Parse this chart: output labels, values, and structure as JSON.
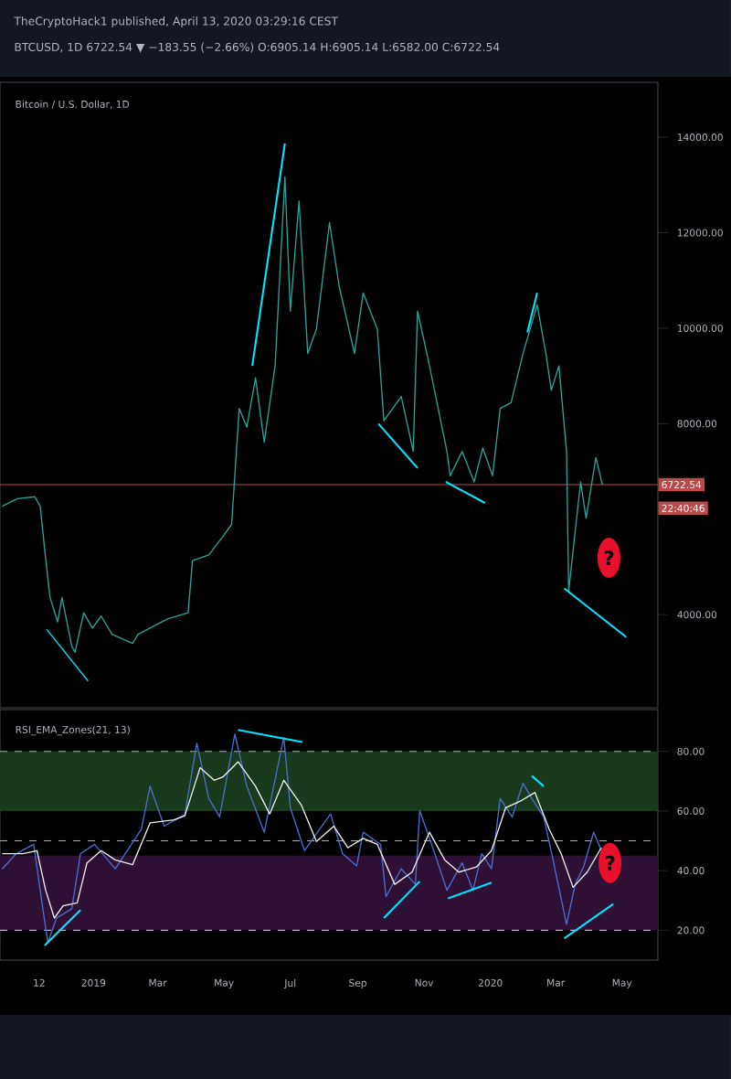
{
  "chart_data": [
    {
      "type": "line",
      "title": "TheCryptoHack1 published, April 13, 2020 03:29:16 CEST",
      "subtitle": "BTCUSD, 1D 6722.54 ▼ −183.55 (−2.66%) O:6905.14 H:6905.14 L:6582.00 C:6722.54",
      "xlim": [
        "2018-10-07",
        "2020-06-03"
      ],
      "ylim": [
        2050,
        15150
      ],
      "yticks": [
        {
          "value": 4000,
          "label": "4000.00"
        },
        {
          "value": 8000,
          "label": "8000.00"
        },
        {
          "value": 10000,
          "label": "10000.00"
        },
        {
          "value": 12000,
          "label": "12000.00"
        },
        {
          "value": 14000,
          "label": "14000.00"
        }
      ],
      "tick_labels": "y",
      "series": [
        {
          "color": "#26a69a",
          "x": [
            "2018-10-09",
            "2018-10-23",
            "2018-11-08",
            "2018-11-13",
            "2018-11-17",
            "2018-11-22",
            "2018-11-29",
            "2018-12-03",
            "2018-12-12",
            "2018-12-15",
            "2018-12-23",
            "2018-12-31",
            "2019-01-08",
            "2019-01-18",
            "2019-02-06",
            "2019-02-11",
            "2019-03-10",
            "2019-03-29",
            "2019-04-02",
            "2019-04-17",
            "2019-04-30",
            "2019-05-08",
            "2019-05-15",
            "2019-05-22",
            "2019-05-30",
            "2019-06-07",
            "2019-06-17",
            "2019-06-26",
            "2019-07-01",
            "2019-07-09",
            "2019-07-17",
            "2019-07-25",
            "2019-08-06",
            "2019-08-15",
            "2019-08-29",
            "2019-09-06",
            "2019-09-19",
            "2019-09-25",
            "2019-10-11",
            "2019-10-22",
            "2019-10-26",
            "2019-11-06",
            "2019-11-22",
            "2019-11-25",
            "2019-12-06",
            "2019-12-17",
            "2019-12-25",
            "2020-01-03",
            "2020-01-10",
            "2020-01-20",
            "2020-01-31",
            "2020-02-13",
            "2020-02-21",
            "2020-02-26",
            "2020-03-04",
            "2020-03-11",
            "2020-03-13",
            "2020-03-19",
            "2020-03-24",
            "2020-03-29",
            "2020-04-07",
            "2020-04-13"
          ],
          "values": [
            6270,
            6430,
            6470,
            6270,
            5380,
            4360,
            3850,
            4360,
            3340,
            3210,
            4040,
            3720,
            3970,
            3590,
            3400,
            3590,
            3910,
            4040,
            5130,
            5250,
            5640,
            5890,
            8320,
            7930,
            8960,
            7610,
            9210,
            13170,
            10360,
            12660,
            9470,
            9980,
            12210,
            10870,
            9470,
            10740,
            9980,
            8060,
            8570,
            7420,
            10360,
            9210,
            7420,
            6910,
            7420,
            6780,
            7490,
            6910,
            8320,
            8440,
            9470,
            10490,
            9470,
            8700,
            9210,
            7420,
            4490,
            5760,
            6780,
            6020,
            7290,
            6720
          ]
        },
        {
          "color": "#00e5ff",
          "x": [
            "2018-11-19",
            "2018-12-27"
          ],
          "values": [
            3690,
            2610
          ]
        },
        {
          "color": "#00e5ff",
          "x": [
            "2019-05-27",
            "2019-06-26"
          ],
          "values": [
            9210,
            13870
          ]
        },
        {
          "color": "#00e5ff",
          "x": [
            "2019-09-20",
            "2019-10-26"
          ],
          "values": [
            8000,
            7070
          ]
        },
        {
          "color": "#00e5ff",
          "x": [
            "2019-11-21",
            "2019-12-27"
          ],
          "values": [
            6780,
            6340
          ]
        },
        {
          "color": "#00e5ff",
          "x": [
            "2020-02-04",
            "2020-02-13"
          ],
          "values": [
            9910,
            10740
          ]
        },
        {
          "color": "#00e5ff",
          "x": [
            "2020-03-09",
            "2020-05-05"
          ],
          "values": [
            4550,
            3530
          ]
        }
      ],
      "ref_lines": [
        {
          "axis": "y",
          "value": 6722.54,
          "label": "6722.54",
          "color": "#b84a4a"
        }
      ],
      "annotations": [
        "Bitcoin / U.S. Dollar, 1D",
        "22:40:46",
        {
          "text": "?",
          "x": "2020-04-19",
          "y": 5190
        }
      ]
    },
    {
      "type": "line",
      "title": "RSI_EMA_Zones(21, 13)",
      "xlim": [
        "2018-10-07",
        "2020-06-03"
      ],
      "ylim": [
        10,
        94
      ],
      "xticks": [
        {
          "value": "2018-11-12",
          "label": "12"
        },
        {
          "value": "2019-01-01",
          "label": "2019"
        },
        {
          "value": "2019-03-01",
          "label": "Mar"
        },
        {
          "value": "2019-05-01",
          "label": "May"
        },
        {
          "value": "2019-07-01",
          "label": "Jul"
        },
        {
          "value": "2019-09-01",
          "label": "Sep"
        },
        {
          "value": "2019-11-01",
          "label": "Nov"
        },
        {
          "value": "2020-01-01",
          "label": "2020"
        },
        {
          "value": "2020-03-01",
          "label": "Mar"
        },
        {
          "value": "2020-05-01",
          "label": "May"
        }
      ],
      "yticks": [
        {
          "value": 20,
          "label": "20.00"
        },
        {
          "value": 40,
          "label": "40.00"
        },
        {
          "value": 60,
          "label": "60.00"
        },
        {
          "value": 80,
          "label": "80.00"
        }
      ],
      "series": [
        {
          "color": "#4a6fd0",
          "x": [
            "2018-10-09",
            "2018-10-22",
            "2018-11-07",
            "2018-11-15",
            "2018-11-20",
            "2018-11-28",
            "2018-12-12",
            "2018-12-20",
            "2019-01-02",
            "2019-01-21",
            "2019-02-14",
            "2019-02-22",
            "2019-03-07",
            "2019-03-26",
            "2019-04-06",
            "2019-04-17",
            "2019-04-27",
            "2019-05-11",
            "2019-05-22",
            "2019-06-07",
            "2019-06-25",
            "2019-07-01",
            "2019-07-14",
            "2019-08-07",
            "2019-08-18",
            "2019-08-31",
            "2019-09-06",
            "2019-09-22",
            "2019-09-27",
            "2019-10-11",
            "2019-10-24",
            "2019-10-28",
            "2019-11-09",
            "2019-11-22",
            "2019-12-06",
            "2019-12-16",
            "2019-12-24",
            "2020-01-02",
            "2020-01-10",
            "2020-01-21",
            "2020-01-31",
            "2020-02-08",
            "2020-02-19",
            "2020-02-27",
            "2020-03-11",
            "2020-03-19",
            "2020-03-27",
            "2020-04-05",
            "2020-04-12"
          ],
          "values": [
            40.6,
            45.7,
            48.8,
            28.2,
            15.9,
            24.1,
            27.2,
            45.7,
            48.8,
            40.6,
            53.9,
            68.3,
            54.9,
            58.9,
            82.7,
            64.2,
            58,
            85.8,
            68.3,
            52.9,
            84.7,
            61.1,
            46.7,
            59,
            45.7,
            41.6,
            52.9,
            48.8,
            31.3,
            40.6,
            35.4,
            60.1,
            47.7,
            33.4,
            42.6,
            33.4,
            45.7,
            40.6,
            64.2,
            58,
            69.3,
            64.2,
            58,
            44.7,
            22,
            35.4,
            41.6,
            52.9,
            46.7
          ]
        },
        {
          "color": "#f0f0f0",
          "x": [
            "2018-10-09",
            "2018-10-28",
            "2018-11-10",
            "2018-11-18",
            "2018-11-26",
            "2018-12-04",
            "2018-12-17",
            "2018-12-26",
            "2019-01-08",
            "2019-01-21",
            "2019-02-06",
            "2019-02-22",
            "2019-03-16",
            "2019-03-26",
            "2019-04-09",
            "2019-04-22",
            "2019-04-30",
            "2019-05-14",
            "2019-05-30",
            "2019-06-12",
            "2019-06-25",
            "2019-07-11",
            "2019-07-25",
            "2019-08-10",
            "2019-08-23",
            "2019-09-06",
            "2019-09-19",
            "2019-10-05",
            "2019-10-21",
            "2019-11-06",
            "2019-11-20",
            "2019-12-03",
            "2019-12-19",
            "2020-01-02",
            "2020-01-15",
            "2020-01-28",
            "2020-02-11",
            "2020-02-24",
            "2020-03-06",
            "2020-03-17",
            "2020-03-30",
            "2020-04-12"
          ],
          "values": [
            45.7,
            45.7,
            46.7,
            33.4,
            24.1,
            28.2,
            29.2,
            42.6,
            46.7,
            43.6,
            42,
            56,
            57,
            58.4,
            74.5,
            70.3,
            71.4,
            76.5,
            68.3,
            59,
            70.3,
            62.1,
            49.8,
            54.9,
            47.7,
            50.8,
            48.8,
            35.4,
            39.5,
            52.9,
            43.6,
            39.5,
            41.2,
            46.7,
            61.1,
            63.2,
            66.2,
            53.9,
            45.7,
            34.4,
            39.5,
            47.7
          ]
        },
        {
          "color": "#00e5ff",
          "x": [
            "2018-11-17",
            "2018-12-20"
          ],
          "values": [
            14.9,
            26.8
          ]
        },
        {
          "color": "#00e5ff",
          "x": [
            "2019-05-14",
            "2019-07-12"
          ],
          "values": [
            87.2,
            83.1
          ]
        },
        {
          "color": "#00e5ff",
          "x": [
            "2019-09-25",
            "2019-10-28"
          ],
          "values": [
            24.1,
            36.4
          ]
        },
        {
          "color": "#00e5ff",
          "x": [
            "2019-11-23",
            "2020-01-02"
          ],
          "values": [
            30.7,
            36
          ]
        },
        {
          "color": "#00e5ff",
          "x": [
            "2020-02-08",
            "2020-02-19"
          ],
          "values": [
            71.8,
            68.3
          ]
        },
        {
          "color": "#00e5ff",
          "x": [
            "2020-03-09",
            "2020-04-23"
          ],
          "values": [
            17.3,
            28.8
          ]
        }
      ],
      "bands": [
        {
          "axis": "y",
          "from": 60,
          "to": 80,
          "color": "#1b3a1d"
        },
        {
          "axis": "y",
          "from": 20,
          "to": 45,
          "color": "#2e1034"
        }
      ],
      "ref_lines": [
        {
          "axis": "y",
          "value": 80,
          "color": "#b0b0b0",
          "line_style": "dashed"
        },
        {
          "axis": "y",
          "value": 50,
          "color": "#b0b0b0",
          "line_style": "dashed"
        },
        {
          "axis": "y",
          "value": 20,
          "color": "#b0b0b0",
          "line_style": "dashed"
        }
      ],
      "annotations": [
        {
          "text": "?",
          "x": "2020-04-20",
          "y": 42.6
        }
      ]
    }
  ]
}
